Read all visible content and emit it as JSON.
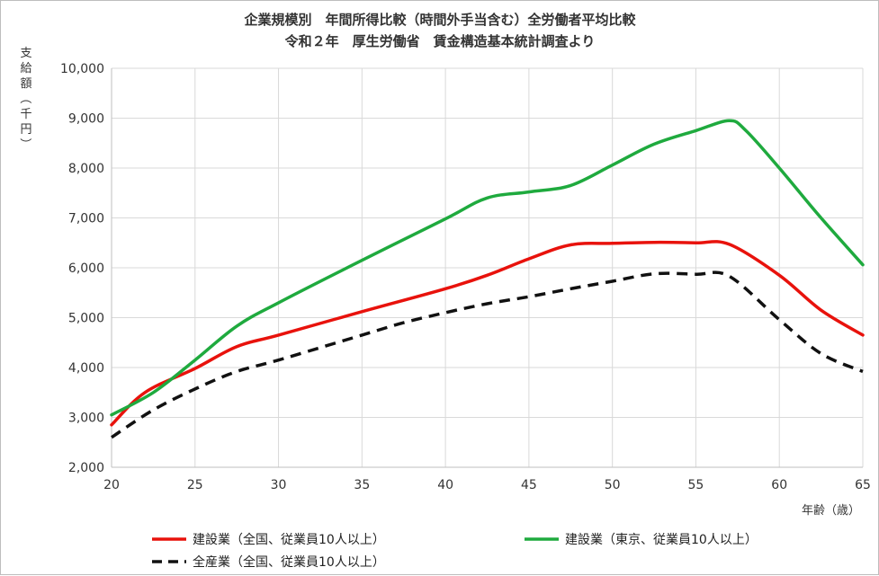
{
  "chart_data": {
    "type": "line",
    "title": "企業規模別　年間所得比較（時間外手当含む）全労働者平均比較",
    "subtitle": "令和２年　厚生労働省　賃金構造基本統計調査より",
    "ylabel": "支給額（千円）",
    "xlabel": "年齢（歳）",
    "xlim": [
      20,
      65
    ],
    "ylim": [
      2000,
      10000
    ],
    "x_ticks": [
      20,
      25,
      30,
      35,
      40,
      45,
      50,
      55,
      60,
      65
    ],
    "y_ticks": [
      2000,
      3000,
      4000,
      5000,
      6000,
      7000,
      8000,
      9000,
      10000
    ],
    "y_tick_labels": [
      "2,000",
      "3,000",
      "4,000",
      "5,000",
      "6,000",
      "7,000",
      "8,000",
      "9,000",
      "10,000"
    ],
    "grid": true,
    "legend_position": "bottom",
    "series": [
      {
        "name": "建設業（全国、従業員10人以上）",
        "color": "#e8120c",
        "style": "solid",
        "x": [
          20,
          22,
          25,
          27.5,
          30,
          35,
          40,
          42.5,
          45,
          47.5,
          50,
          52.5,
          55,
          57,
          60,
          62.5,
          65
        ],
        "y": [
          2850,
          3500,
          3980,
          4420,
          4650,
          5120,
          5580,
          5850,
          6180,
          6460,
          6490,
          6510,
          6500,
          6470,
          5850,
          5150,
          4650
        ]
      },
      {
        "name": "建設業（東京、従業員10人以上）",
        "color": "#1faa3e",
        "style": "solid",
        "x": [
          20,
          22.5,
          25,
          27.5,
          30,
          35,
          40,
          42.5,
          45,
          47.5,
          50,
          52.5,
          55,
          57,
          58,
          60,
          62.5,
          65
        ],
        "y": [
          3050,
          3500,
          4150,
          4830,
          5300,
          6150,
          6980,
          7400,
          7520,
          7650,
          8060,
          8480,
          8750,
          8950,
          8750,
          8000,
          7000,
          6060
        ]
      },
      {
        "name": "全産業（全国、従業員10人以上）",
        "color": "#111111",
        "style": "dashed",
        "x": [
          20,
          22.5,
          25,
          27.5,
          30,
          35,
          37.5,
          40,
          42.5,
          45,
          47.5,
          50,
          52.5,
          55,
          57,
          60,
          62.5,
          65
        ],
        "y": [
          2600,
          3150,
          3570,
          3920,
          4150,
          4650,
          4900,
          5100,
          5280,
          5420,
          5580,
          5730,
          5880,
          5870,
          5830,
          4960,
          4280,
          3920
        ]
      }
    ]
  }
}
